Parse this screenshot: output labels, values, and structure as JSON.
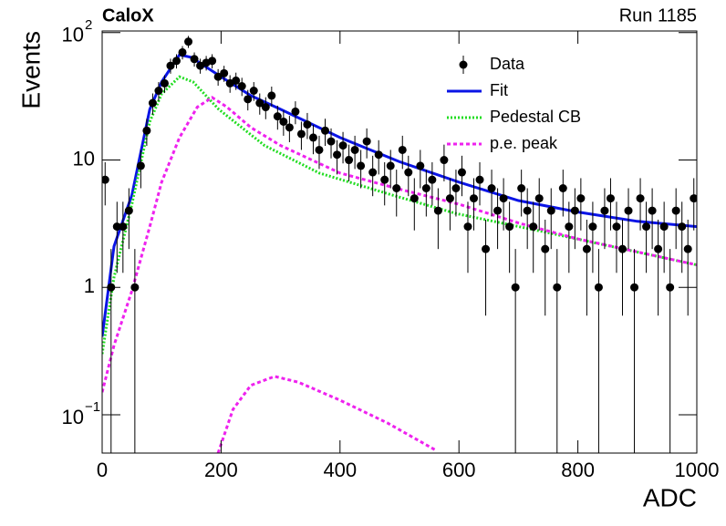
{
  "chart_data": {
    "type": "histogram-fit",
    "title": "CaloX",
    "subtitle": "Run 1185",
    "x_label": "ADC",
    "y_label": "Events",
    "log_y": true,
    "legend": "top-right",
    "xlim": [
      0,
      1000
    ],
    "ylim": [
      0.05,
      103
    ],
    "xticks": [
      0,
      200,
      400,
      600,
      800,
      1000
    ],
    "yticks": [
      {
        "value": 0.1,
        "label": "10",
        "exponent": "−1"
      },
      1,
      10,
      {
        "value": 100,
        "label": "10",
        "exponent": "2"
      }
    ],
    "series": [
      {
        "name": "Data",
        "kind": "points",
        "color": "#000000",
        "x": [
          5,
          15,
          25,
          35,
          45,
          55,
          65,
          75,
          85,
          95,
          105,
          115,
          125,
          135,
          145,
          155,
          165,
          175,
          185,
          195,
          205,
          215,
          225,
          235,
          245,
          255,
          265,
          275,
          285,
          295,
          305,
          315,
          325,
          335,
          345,
          355,
          365,
          375,
          385,
          395,
          405,
          415,
          425,
          435,
          445,
          455,
          465,
          475,
          485,
          495,
          505,
          515,
          525,
          535,
          545,
          555,
          565,
          575,
          585,
          595,
          605,
          615,
          625,
          635,
          645,
          655,
          665,
          675,
          685,
          695,
          705,
          715,
          725,
          735,
          745,
          755,
          765,
          775,
          785,
          795,
          805,
          815,
          825,
          835,
          845,
          855,
          865,
          875,
          885,
          895,
          905,
          915,
          925,
          935,
          945,
          955,
          965,
          975,
          985,
          995
        ],
        "values": [
          7,
          1,
          3,
          3,
          4,
          1,
          9,
          17,
          28,
          35,
          40,
          55,
          60,
          70,
          85,
          62,
          55,
          58,
          60,
          45,
          48,
          40,
          42,
          38,
          30,
          35,
          28,
          26,
          32,
          22,
          20,
          18,
          24,
          16,
          19,
          15,
          12,
          17,
          14,
          11,
          13,
          10,
          12,
          9,
          14,
          8,
          11,
          7,
          9,
          6,
          12,
          8,
          5,
          9,
          6,
          7,
          4,
          10,
          5,
          6,
          8,
          3,
          5,
          7,
          2,
          6,
          4,
          5,
          3,
          1,
          6,
          4,
          3,
          5,
          2,
          4,
          1,
          6,
          3,
          4,
          5,
          2,
          3,
          1,
          4,
          5,
          3,
          2,
          4,
          1,
          5,
          3,
          4,
          2,
          3,
          1,
          4,
          3,
          2,
          5
        ],
        "errors": [
          2.6,
          1,
          1.7,
          1.7,
          2,
          1,
          3,
          4.1,
          5.3,
          5.9,
          6.3,
          7.4,
          7.7,
          8.4,
          9.2,
          7.9,
          7.4,
          7.6,
          7.7,
          6.7,
          6.9,
          6.3,
          6.5,
          6.2,
          5.5,
          5.9,
          5.3,
          5.1,
          5.7,
          4.7,
          4.5,
          4.2,
          4.9,
          4,
          4.4,
          3.9,
          3.5,
          4.1,
          3.7,
          3.3,
          3.6,
          3.2,
          3.5,
          3,
          3.7,
          2.8,
          3.3,
          2.6,
          3,
          2.4,
          3.5,
          2.8,
          2.2,
          3,
          2.4,
          2.6,
          2,
          3.2,
          2.2,
          2.4,
          2.8,
          1.7,
          2.2,
          2.6,
          1.4,
          2.4,
          2,
          2.2,
          1.7,
          1,
          2.4,
          2,
          1.7,
          2.2,
          1.4,
          2,
          1,
          2.4,
          1.7,
          2,
          2.2,
          1.4,
          1.7,
          1,
          2,
          2.2,
          1.7,
          1.4,
          2,
          1,
          2.2,
          1.7,
          2,
          1.4,
          1.7,
          1,
          2,
          1.7,
          1.4,
          2.2
        ]
      },
      {
        "name": "Fit",
        "kind": "line",
        "color": "#0a14e6",
        "x": [
          0,
          20,
          50,
          80,
          100,
          130,
          150,
          200,
          250,
          300,
          400,
          500,
          600,
          700,
          800,
          900,
          1000
        ],
        "values": [
          0.41,
          2.1,
          5.3,
          25,
          41,
          67,
          64,
          45,
          32,
          25,
          15,
          9.7,
          6.7,
          4.8,
          3.9,
          3.3,
          3.0
        ]
      },
      {
        "name": "Pedestal CB",
        "kind": "dotted",
        "color": "#22dd22",
        "x": [
          0,
          20,
          50,
          80,
          100,
          130,
          153,
          196,
          273,
          365,
          488,
          595,
          748,
          1000
        ],
        "values": [
          0.3,
          1.2,
          4.5,
          20,
          33,
          45,
          41,
          25,
          13,
          7.9,
          5.3,
          3.8,
          2.7,
          1.5
        ]
      },
      {
        "name": "p.e. peak",
        "kind": "dashed",
        "color": "#ee22ee",
        "x": [
          0,
          20,
          50,
          80,
          100,
          130,
          160,
          185,
          210,
          250,
          300,
          400,
          500,
          600,
          700,
          800,
          900,
          1000
        ],
        "values": [
          0.15,
          0.35,
          0.94,
          3,
          6.7,
          15,
          26,
          31,
          26,
          18,
          13,
          7.9,
          5.9,
          4.5,
          3.2,
          2.4,
          1.9,
          1.5
        ]
      },
      {
        "name": "p.e. peak",
        "kind": "dashed",
        "color": "#ee22ee",
        "legend": false,
        "x": [
          195,
          220,
          250,
          290,
          330,
          400,
          480,
          560
        ],
        "values": [
          0.05,
          0.11,
          0.17,
          0.2,
          0.18,
          0.13,
          0.086,
          0.053
        ]
      }
    ]
  }
}
